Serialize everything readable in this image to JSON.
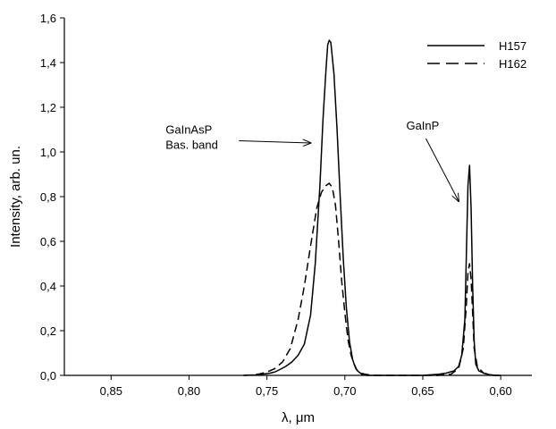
{
  "chart_data": {
    "type": "line",
    "xlabel": "λ, μm",
    "ylabel": "Intensity, arb. un.",
    "xlim": [
      0.88,
      0.58
    ],
    "ylim": [
      0.0,
      1.6
    ],
    "x_reversed": true,
    "x_ticks": [
      {
        "value": 0.85,
        "label": "0,85"
      },
      {
        "value": 0.8,
        "label": "0,80"
      },
      {
        "value": 0.75,
        "label": "0,75"
      },
      {
        "value": 0.7,
        "label": "0,70"
      },
      {
        "value": 0.65,
        "label": "0,65"
      },
      {
        "value": 0.6,
        "label": "0,60"
      }
    ],
    "y_ticks": [
      {
        "value": 0.0,
        "label": "0,0"
      },
      {
        "value": 0.2,
        "label": "0,2"
      },
      {
        "value": 0.4,
        "label": "0,4"
      },
      {
        "value": 0.6,
        "label": "0,6"
      },
      {
        "value": 0.8,
        "label": "0,8"
      },
      {
        "value": 1.0,
        "label": "1,0"
      },
      {
        "value": 1.2,
        "label": "1,2"
      },
      {
        "value": 1.4,
        "label": "1,4"
      },
      {
        "value": 1.6,
        "label": "1,6"
      }
    ],
    "grid": false,
    "legend_position": "top-right",
    "series": [
      {
        "name": "H157",
        "style": "solid",
        "color": "#000000",
        "x": [
          0.765,
          0.757,
          0.752,
          0.748,
          0.745,
          0.742,
          0.738,
          0.734,
          0.73,
          0.726,
          0.722,
          0.719,
          0.716,
          0.714,
          0.712,
          0.711,
          0.71,
          0.709,
          0.707,
          0.705,
          0.703,
          0.701,
          0.699,
          0.697,
          0.695,
          0.693,
          0.691,
          0.689,
          0.686,
          0.68,
          0.67,
          0.66,
          0.65,
          0.64,
          0.635,
          0.63,
          0.627,
          0.625,
          0.623,
          0.622,
          0.621,
          0.62,
          0.619,
          0.618,
          0.617,
          0.616,
          0.614,
          0.611,
          0.607,
          0.603,
          0.6
        ],
        "y": [
          0.0,
          0.002,
          0.006,
          0.01,
          0.015,
          0.025,
          0.04,
          0.06,
          0.09,
          0.14,
          0.27,
          0.5,
          0.85,
          1.15,
          1.38,
          1.48,
          1.5,
          1.49,
          1.35,
          1.1,
          0.8,
          0.52,
          0.3,
          0.15,
          0.07,
          0.03,
          0.015,
          0.005,
          0.0,
          0.0,
          0.0,
          0.0,
          0.0,
          0.005,
          0.01,
          0.02,
          0.04,
          0.09,
          0.25,
          0.55,
          0.85,
          0.94,
          0.75,
          0.4,
          0.15,
          0.05,
          0.02,
          0.01,
          0.003,
          0.0,
          0.0
        ]
      },
      {
        "name": "H162",
        "style": "dashed",
        "color": "#000000",
        "x": [
          0.765,
          0.76,
          0.755,
          0.75,
          0.745,
          0.74,
          0.735,
          0.73,
          0.726,
          0.722,
          0.718,
          0.715,
          0.712,
          0.71,
          0.708,
          0.706,
          0.704,
          0.702,
          0.7,
          0.698,
          0.696,
          0.694,
          0.692,
          0.69,
          0.686,
          0.68,
          0.67,
          0.66,
          0.65,
          0.64,
          0.632,
          0.627,
          0.624,
          0.622,
          0.621,
          0.62,
          0.619,
          0.618,
          0.617,
          0.615,
          0.611,
          0.605,
          0.6
        ],
        "y": [
          0.0,
          0.002,
          0.006,
          0.015,
          0.03,
          0.06,
          0.12,
          0.25,
          0.4,
          0.58,
          0.75,
          0.82,
          0.85,
          0.86,
          0.84,
          0.76,
          0.6,
          0.42,
          0.28,
          0.16,
          0.09,
          0.05,
          0.02,
          0.01,
          0.004,
          0.0,
          0.0,
          0.0,
          0.0,
          0.0,
          0.005,
          0.03,
          0.12,
          0.32,
          0.46,
          0.5,
          0.43,
          0.28,
          0.12,
          0.04,
          0.01,
          0.0,
          0.0
        ]
      }
    ],
    "annotations": [
      {
        "lines": [
          "GaInAsP",
          "Bas. band"
        ],
        "arrow_from": [
          0.768,
          1.05
        ],
        "arrow_to": [
          0.722,
          1.04
        ]
      },
      {
        "lines": [
          "GaInP"
        ],
        "arrow_from": [
          0.648,
          1.06
        ],
        "arrow_to": [
          0.627,
          0.78
        ]
      }
    ]
  }
}
